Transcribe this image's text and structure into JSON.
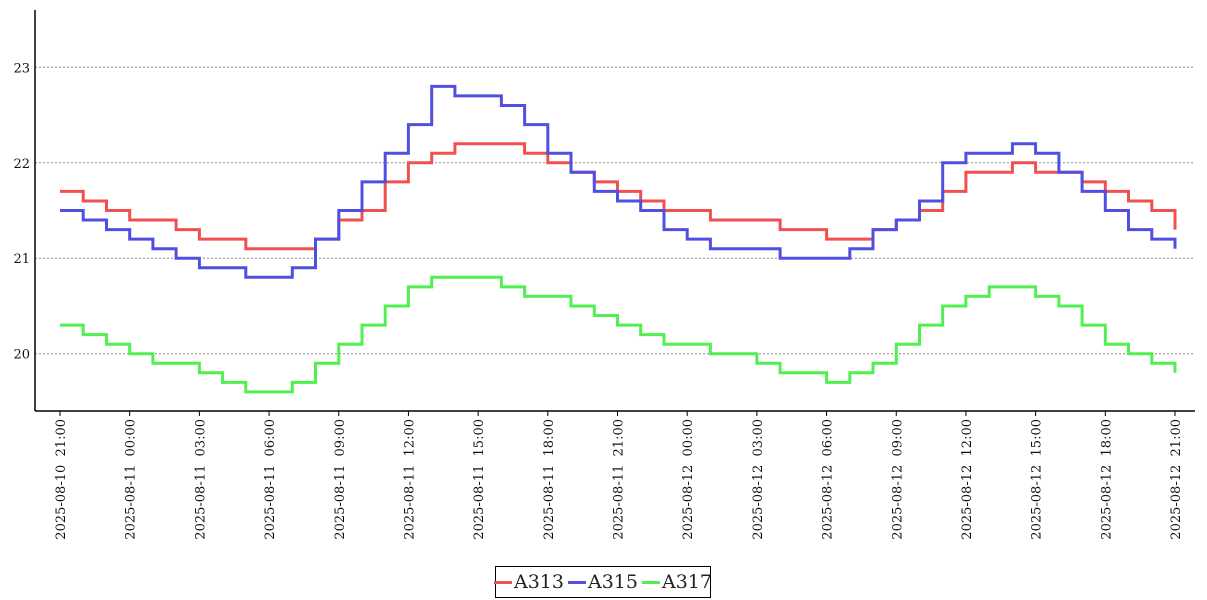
{
  "chart_data": {
    "type": "line",
    "title": "",
    "xlabel": "",
    "ylabel": "",
    "x_range": [
      "2025-08-10 21:00",
      "2025-08-12 21:00"
    ],
    "ylim": [
      19.4,
      23.6
    ],
    "grid": "horizontal dotted",
    "legend_position": "bottom-center",
    "y_ticks": [
      20,
      21,
      22,
      23
    ],
    "x_ticks": [
      "2025-08-10 21:00",
      "2025-08-11 00:00",
      "2025-08-11 03:00",
      "2025-08-11 06:00",
      "2025-08-11 09:00",
      "2025-08-11 12:00",
      "2025-08-11 15:00",
      "2025-08-11 18:00",
      "2025-08-11 21:00",
      "2025-08-12 00:00",
      "2025-08-12 03:00",
      "2025-08-12 06:00",
      "2025-08-12 09:00",
      "2025-08-12 12:00",
      "2025-08-12 15:00",
      "2025-08-12 18:00",
      "2025-08-12 21:00"
    ],
    "x": [
      "2025-08-10 21:00",
      "2025-08-10 22:00",
      "2025-08-10 23:00",
      "2025-08-11 00:00",
      "2025-08-11 01:00",
      "2025-08-11 02:00",
      "2025-08-11 03:00",
      "2025-08-11 04:00",
      "2025-08-11 05:00",
      "2025-08-11 06:00",
      "2025-08-11 07:00",
      "2025-08-11 08:00",
      "2025-08-11 09:00",
      "2025-08-11 10:00",
      "2025-08-11 11:00",
      "2025-08-11 12:00",
      "2025-08-11 13:00",
      "2025-08-11 14:00",
      "2025-08-11 15:00",
      "2025-08-11 16:00",
      "2025-08-11 17:00",
      "2025-08-11 18:00",
      "2025-08-11 19:00",
      "2025-08-11 20:00",
      "2025-08-11 21:00",
      "2025-08-11 22:00",
      "2025-08-11 23:00",
      "2025-08-12 00:00",
      "2025-08-12 01:00",
      "2025-08-12 02:00",
      "2025-08-12 03:00",
      "2025-08-12 04:00",
      "2025-08-12 05:00",
      "2025-08-12 06:00",
      "2025-08-12 07:00",
      "2025-08-12 08:00",
      "2025-08-12 09:00",
      "2025-08-12 10:00",
      "2025-08-12 11:00",
      "2025-08-12 12:00",
      "2025-08-12 13:00",
      "2025-08-12 14:00",
      "2025-08-12 15:00",
      "2025-08-12 16:00",
      "2025-08-12 17:00",
      "2025-08-12 18:00",
      "2025-08-12 19:00",
      "2025-08-12 20:00",
      "2025-08-12 21:00"
    ],
    "series": [
      {
        "name": "A313",
        "color": "#f05050",
        "values": [
          21.7,
          21.6,
          21.5,
          21.4,
          21.4,
          21.3,
          21.2,
          21.2,
          21.1,
          21.1,
          21.1,
          21.2,
          21.4,
          21.5,
          21.8,
          22.0,
          22.1,
          22.2,
          22.2,
          22.2,
          22.1,
          22.0,
          21.9,
          21.8,
          21.7,
          21.6,
          21.5,
          21.5,
          21.4,
          21.4,
          21.4,
          21.3,
          21.3,
          21.2,
          21.2,
          21.3,
          21.4,
          21.5,
          21.7,
          21.9,
          21.9,
          22.0,
          21.9,
          21.9,
          21.8,
          21.7,
          21.6,
          21.5,
          21.3
        ]
      },
      {
        "name": "A315",
        "color": "#5050e0",
        "values": [
          21.5,
          21.4,
          21.3,
          21.2,
          21.1,
          21.0,
          20.9,
          20.9,
          20.8,
          20.8,
          20.9,
          21.2,
          21.5,
          21.8,
          22.1,
          22.4,
          22.8,
          22.7,
          22.7,
          22.6,
          22.4,
          22.1,
          21.9,
          21.7,
          21.6,
          21.5,
          21.3,
          21.2,
          21.1,
          21.1,
          21.1,
          21.0,
          21.0,
          21.0,
          21.1,
          21.3,
          21.4,
          21.6,
          22.0,
          22.1,
          22.1,
          22.2,
          22.1,
          21.9,
          21.7,
          21.5,
          21.3,
          21.2,
          21.1
        ]
      },
      {
        "name": "A317",
        "color": "#50f050",
        "values": [
          20.3,
          20.2,
          20.1,
          20.0,
          19.9,
          19.9,
          19.8,
          19.7,
          19.6,
          19.6,
          19.7,
          19.9,
          20.1,
          20.3,
          20.5,
          20.7,
          20.8,
          20.8,
          20.8,
          20.7,
          20.6,
          20.6,
          20.5,
          20.4,
          20.3,
          20.2,
          20.1,
          20.1,
          20.0,
          20.0,
          19.9,
          19.8,
          19.8,
          19.7,
          19.8,
          19.9,
          20.1,
          20.3,
          20.5,
          20.6,
          20.7,
          20.7,
          20.6,
          20.5,
          20.3,
          20.1,
          20.0,
          19.9,
          19.8
        ]
      }
    ]
  }
}
